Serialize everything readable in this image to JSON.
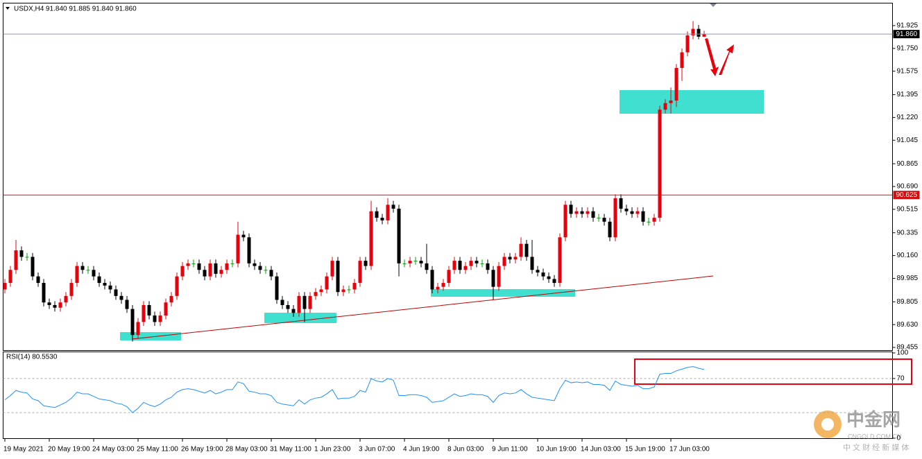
{
  "chart_data": [
    {
      "type": "candlestick",
      "title": "USDX,H4",
      "subtitle": "91.840 91.885 91.840 91.860",
      "categories": [
        "19 May 2021",
        null,
        null,
        null,
        null,
        null,
        null,
        null,
        "20 May 19:00",
        null,
        null,
        null,
        null,
        null,
        null,
        null,
        "24 May 03:00",
        null,
        null,
        null,
        null,
        null,
        null,
        null,
        "25 May 11:00",
        null,
        null,
        null,
        null,
        null,
        null,
        null,
        "26 May 19:00",
        null,
        null,
        null,
        null,
        null,
        null,
        null,
        "28 May 03:00",
        null,
        null,
        null,
        null,
        null,
        null,
        null,
        "31 May 11:00",
        null,
        null,
        null,
        null,
        null,
        null,
        null,
        "1 Jun 23:00",
        null,
        null,
        null,
        null,
        null,
        null,
        null,
        "3 Jun 07:00",
        null,
        null,
        null,
        null,
        null,
        null,
        null,
        "4 Jun 19:00",
        null,
        null,
        null,
        null,
        null,
        null,
        null,
        "8 Jun 03:00",
        null,
        null,
        null,
        null,
        null,
        null,
        null,
        "9 Jun 11:00",
        null,
        null,
        null,
        null,
        null,
        null,
        null,
        "10 Jun 19:00",
        null,
        null,
        null,
        null,
        null,
        null,
        null,
        "14 Jun 03:00",
        null,
        null,
        null,
        null,
        null,
        null,
        null,
        "15 Jun 19:00",
        null,
        null,
        null,
        null,
        null,
        null,
        null,
        "17 Jun 03:00",
        null,
        null,
        null,
        null,
        null,
        null
      ],
      "open": [
        89.9,
        89.95,
        90.05,
        90.2,
        90.15,
        90.15,
        90.0,
        89.95,
        89.8,
        89.78,
        89.76,
        89.8,
        89.85,
        89.95,
        90.08,
        90.05,
        90.05,
        90.0,
        89.95,
        89.93,
        89.9,
        89.85,
        89.82,
        89.75,
        89.55,
        89.65,
        89.78,
        89.7,
        89.65,
        89.7,
        89.8,
        89.85,
        90.0,
        90.08,
        90.1,
        90.1,
        90.05,
        90.0,
        90.1,
        90.02,
        90.05,
        90.1,
        90.1,
        90.32,
        90.3,
        90.1,
        90.08,
        90.05,
        90.05,
        90.0,
        89.82,
        89.78,
        89.75,
        89.72,
        89.85,
        89.75,
        89.85,
        89.88,
        89.9,
        90.0,
        90.12,
        89.88,
        89.9,
        89.9,
        89.95,
        90.12,
        90.08,
        90.5,
        90.45,
        90.43,
        90.55,
        90.52,
        90.1,
        90.1,
        90.12,
        90.12,
        90.1,
        90.05,
        89.9,
        89.92,
        89.95,
        90.05,
        90.12,
        90.05,
        90.08,
        90.12,
        90.1,
        90.1,
        90.05,
        89.92,
        90.08,
        90.15,
        90.13,
        90.15,
        90.25,
        90.15,
        90.05,
        90.03,
        90.0,
        89.98,
        89.95,
        90.3,
        90.55,
        90.48,
        90.5,
        90.48,
        90.5,
        90.45,
        90.45,
        90.42,
        90.3,
        90.6,
        90.52,
        90.5,
        90.48,
        90.5,
        90.42,
        90.42,
        90.45,
        91.28,
        91.33,
        91.35,
        91.6,
        91.72,
        91.85,
        91.9,
        91.84
      ],
      "high": [
        89.98,
        90.08,
        90.28,
        90.23,
        90.18,
        90.18,
        90.03,
        89.98,
        89.83,
        89.81,
        89.83,
        89.88,
        89.98,
        90.11,
        90.11,
        90.08,
        90.08,
        90.03,
        89.98,
        89.96,
        89.93,
        89.88,
        89.85,
        89.78,
        89.68,
        89.81,
        89.81,
        89.73,
        89.73,
        89.83,
        89.88,
        90.03,
        90.11,
        90.13,
        90.13,
        90.13,
        90.08,
        90.13,
        90.13,
        90.08,
        90.13,
        90.13,
        90.42,
        90.35,
        90.33,
        90.13,
        90.11,
        90.08,
        90.08,
        90.03,
        89.85,
        89.81,
        89.78,
        89.88,
        89.88,
        89.88,
        89.91,
        89.93,
        90.03,
        90.15,
        90.15,
        89.93,
        89.93,
        89.98,
        90.15,
        90.15,
        90.58,
        90.53,
        90.48,
        90.6,
        90.58,
        90.55,
        90.13,
        90.15,
        90.15,
        90.15,
        90.25,
        90.08,
        89.95,
        89.98,
        90.08,
        90.15,
        90.15,
        90.11,
        90.15,
        90.15,
        90.13,
        90.13,
        90.08,
        90.11,
        90.18,
        90.18,
        90.18,
        90.3,
        90.28,
        90.28,
        90.08,
        90.06,
        90.03,
        90.01,
        90.33,
        90.58,
        90.58,
        90.53,
        90.53,
        90.53,
        90.53,
        90.48,
        90.48,
        90.45,
        90.63,
        90.63,
        90.55,
        90.53,
        90.53,
        90.53,
        90.45,
        90.48,
        91.31,
        91.36,
        91.45,
        91.63,
        91.75,
        91.88,
        91.96,
        91.93,
        91.885
      ],
      "low": [
        89.87,
        89.92,
        90.02,
        90.12,
        90.12,
        89.97,
        89.92,
        89.77,
        89.75,
        89.73,
        89.73,
        89.77,
        89.82,
        89.92,
        90.02,
        90.02,
        89.97,
        89.92,
        89.9,
        89.87,
        89.82,
        89.79,
        89.72,
        89.5,
        89.52,
        89.62,
        89.67,
        89.62,
        89.62,
        89.67,
        89.77,
        89.82,
        89.97,
        90.05,
        90.07,
        90.02,
        89.97,
        89.97,
        89.99,
        89.99,
        90.02,
        90.07,
        90.07,
        90.27,
        90.07,
        90.05,
        90.02,
        90.02,
        89.97,
        89.79,
        89.75,
        89.72,
        89.69,
        89.69,
        89.65,
        89.72,
        89.82,
        89.85,
        89.87,
        89.97,
        89.85,
        89.85,
        89.87,
        89.87,
        89.92,
        90.05,
        90.05,
        90.42,
        90.4,
        90.4,
        90.49,
        90.0,
        90.07,
        90.07,
        90.09,
        90.07,
        90.02,
        89.87,
        89.87,
        89.89,
        89.92,
        90.02,
        90.02,
        90.02,
        90.05,
        90.07,
        90.07,
        90.02,
        89.82,
        89.89,
        90.05,
        90.1,
        90.1,
        90.12,
        90.12,
        90.02,
        90.0,
        89.97,
        89.95,
        89.92,
        89.92,
        90.27,
        90.45,
        90.45,
        90.45,
        90.45,
        90.42,
        90.42,
        90.39,
        90.27,
        90.27,
        90.49,
        90.47,
        90.45,
        90.45,
        90.39,
        90.39,
        90.39,
        90.42,
        91.25,
        91.25,
        91.3,
        91.5,
        91.69,
        91.82,
        91.82,
        91.84
      ],
      "close": [
        89.95,
        90.05,
        90.2,
        90.15,
        90.15,
        90.0,
        89.95,
        89.8,
        89.78,
        89.76,
        89.8,
        89.85,
        89.95,
        90.08,
        90.05,
        90.05,
        90.0,
        89.95,
        89.93,
        89.9,
        89.85,
        89.82,
        89.75,
        89.55,
        89.65,
        89.78,
        89.7,
        89.65,
        89.7,
        89.8,
        89.85,
        90.0,
        90.08,
        90.1,
        90.1,
        90.05,
        90.0,
        90.1,
        90.02,
        90.05,
        90.1,
        90.1,
        90.32,
        90.3,
        90.1,
        90.08,
        90.05,
        90.05,
        90.0,
        89.82,
        89.78,
        89.75,
        89.72,
        89.85,
        89.75,
        89.85,
        89.88,
        89.9,
        90.0,
        90.12,
        89.88,
        89.9,
        89.9,
        89.95,
        90.12,
        90.08,
        90.5,
        90.45,
        90.43,
        90.55,
        90.52,
        90.1,
        90.1,
        90.12,
        90.12,
        90.1,
        90.05,
        89.9,
        89.92,
        89.95,
        90.05,
        90.12,
        90.05,
        90.08,
        90.12,
        90.1,
        90.1,
        90.05,
        89.92,
        90.08,
        90.15,
        90.13,
        90.15,
        90.25,
        90.15,
        90.05,
        90.03,
        90.0,
        89.98,
        89.95,
        90.3,
        90.55,
        90.48,
        90.5,
        90.48,
        90.5,
        90.45,
        90.45,
        90.42,
        90.3,
        90.6,
        90.52,
        90.5,
        90.48,
        90.5,
        90.42,
        90.42,
        90.45,
        91.28,
        91.33,
        91.35,
        91.6,
        91.72,
        91.85,
        91.9,
        91.84,
        91.86
      ],
      "up_color": "#e8000b",
      "down_color": "#000000",
      "flat_color": "#00a000",
      "ylim": [
        89.434,
        92.095
      ],
      "yticks": [
        91.925,
        {
          "value": 91.75,
          "label": "91.750"
        },
        91.575,
        91.395,
        {
          "value": 91.22,
          "label": "91.220"
        },
        91.045,
        90.865,
        {
          "value": 90.69,
          "label": "90.690"
        },
        90.515,
        90.335,
        {
          "value": 90.16,
          "label": "90.160"
        },
        89.985,
        89.805,
        {
          "value": 89.63,
          "label": "89.630"
        },
        89.455
      ],
      "price_lines": [
        {
          "value": 91.86,
          "label": "91.860",
          "color": "#8899aa"
        },
        {
          "value": 90.625,
          "label": "90.625",
          "color": "#d01010"
        }
      ]
    },
    {
      "type": "line",
      "title": "RSI(14) 80.5530",
      "color": "#1e90ff",
      "values": [
        45,
        50,
        56,
        54,
        53,
        46,
        44,
        38,
        37,
        36,
        39,
        42,
        47,
        54,
        52,
        52,
        49,
        46,
        45,
        44,
        41,
        40,
        37,
        30,
        35,
        42,
        39,
        37,
        40,
        45,
        48,
        54,
        57,
        58,
        57,
        55,
        53,
        56,
        52,
        54,
        57,
        57,
        66,
        64,
        55,
        54,
        52,
        52,
        50,
        42,
        40,
        39,
        38,
        45,
        40,
        45,
        47,
        48,
        52,
        57,
        46,
        47,
        47,
        49,
        56,
        54,
        70,
        67,
        66,
        70,
        68,
        50,
        50,
        51,
        51,
        50,
        48,
        42,
        43,
        44,
        48,
        52,
        49,
        50,
        52,
        51,
        51,
        49,
        42,
        50,
        53,
        52,
        53,
        57,
        52,
        48,
        47,
        46,
        45,
        44,
        58,
        68,
        65,
        66,
        65,
        66,
        63,
        63,
        62,
        56,
        67,
        63,
        62,
        61,
        62,
        58,
        58,
        60,
        75,
        76,
        76,
        79,
        81,
        83,
        84,
        82,
        80.553
      ],
      "ylim": [
        0,
        100
      ],
      "yticks": [
        100,
        70,
        0
      ],
      "levels": [
        70,
        30
      ]
    }
  ],
  "watermark": {
    "brand": "中金网",
    "site": "CNGOLD.COM.CN",
    "slogan": "中 文 财 经 新 媒 体"
  }
}
